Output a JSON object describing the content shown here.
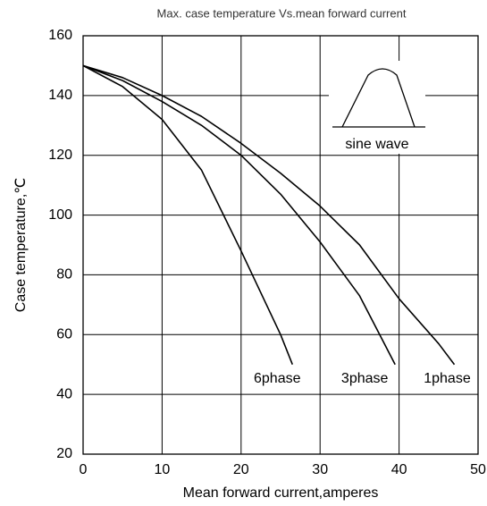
{
  "chart_data": {
    "type": "line",
    "title": "Max. case temperature  Vs.mean forward current",
    "xlabel": "Mean forward current,amperes",
    "ylabel": "Case temperature,℃",
    "annotation": "sine wave",
    "xlim": [
      0,
      50
    ],
    "xticks": [
      0,
      10,
      20,
      30,
      40,
      50
    ],
    "ylim": [
      20,
      160
    ],
    "yticks": [
      20,
      40,
      60,
      80,
      100,
      120,
      140,
      160
    ],
    "grid": true,
    "series": [
      {
        "name": "6phase",
        "color": "#000000",
        "x": [
          0,
          5,
          10,
          15,
          20,
          25,
          26.5
        ],
        "values": [
          150,
          143,
          132,
          115,
          88,
          60,
          50
        ]
      },
      {
        "name": "3phase",
        "color": "#000000",
        "x": [
          0,
          5,
          10,
          15,
          20,
          25,
          30,
          35,
          39.5
        ],
        "values": [
          150,
          145,
          138,
          130,
          120,
          107,
          91,
          73,
          50
        ]
      },
      {
        "name": "1phase",
        "color": "#000000",
        "x": [
          0,
          5,
          10,
          15,
          20,
          25,
          30,
          35,
          40,
          45,
          47
        ],
        "values": [
          150,
          146,
          140,
          133,
          124,
          114,
          103,
          90,
          72,
          57,
          50
        ]
      }
    ]
  }
}
